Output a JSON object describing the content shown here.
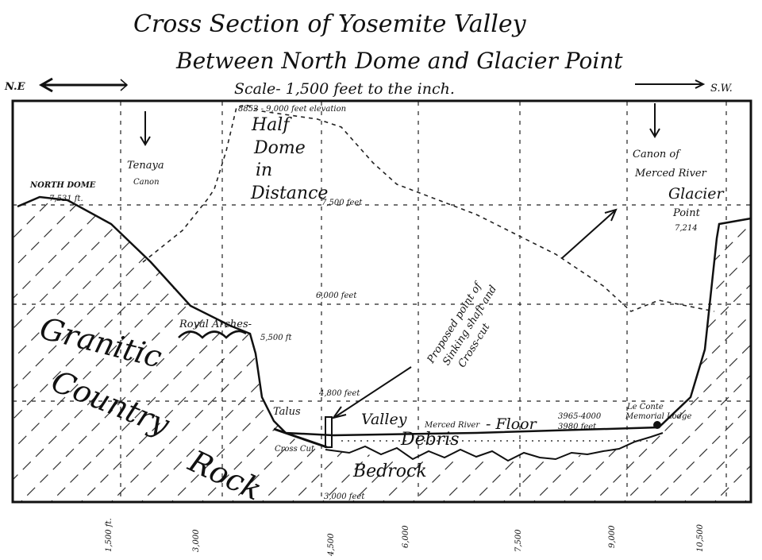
{
  "title": "Cross Section of Yosemite Valley",
  "subtitle": "Between North Dome and Glacier Point",
  "scale": "Scale- 1,500 feet to the inch.",
  "directions": {
    "left": "N.E",
    "right": "S.W."
  },
  "labels": {
    "half_dome_elev": "8852 - 9,000 feet elevation",
    "half_dome": [
      "Half",
      "Dome",
      "in",
      "Distance"
    ],
    "tenaya": [
      "Tenaya",
      "Canon"
    ],
    "north_dome": [
      "NORTH DOME",
      "7,531 ft."
    ],
    "merced_canon": [
      "Canon of",
      "Merced River"
    ],
    "glacier_point": [
      "Glacier",
      "Point",
      "7,214"
    ],
    "elev_7500": "7,500 feet",
    "elev_6000": "6,000 feet",
    "royal_arches": "Royal Arches-",
    "royal_arches_elev": "5,500 ft",
    "proposed": [
      "Proposed point of",
      "Sinking shaft and",
      "Cross-cut"
    ],
    "elev_4800": "4,800 feet",
    "talus": "Talus",
    "cross_cut": "Cross Cut",
    "valley": "Valley",
    "merced_river": "Merced River",
    "floor": "- Floor",
    "floor_elev": [
      "3965-4000",
      "3980 feet"
    ],
    "le_conte": [
      "Le Conte",
      "Memorial Lodge"
    ],
    "debris": "Debris",
    "bedrock": "Bedrock",
    "elev_3000": "3,000 feet",
    "granitic": [
      "Granitic",
      "Country",
      "Rock"
    ]
  },
  "x_axis_ticks": [
    "1,500 ft.",
    "3,000",
    "4,500",
    "6,000",
    "7,500",
    "9,000",
    "10,500"
  ]
}
